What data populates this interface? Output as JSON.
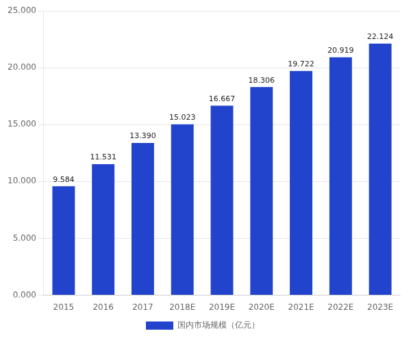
{
  "chart_data": {
    "type": "bar",
    "categories": [
      "2015",
      "2016",
      "2017",
      "2018E",
      "2019E",
      "2020E",
      "2021E",
      "2022E",
      "2023E"
    ],
    "series": [
      {
        "name": "国内市场规模（亿元）",
        "color": "#2244cc",
        "values": [
          9.584,
          11.531,
          13.39,
          15.023,
          16.667,
          18.306,
          19.722,
          20.919,
          22.124
        ],
        "value_labels": [
          "9.584",
          "11.531",
          "13.390",
          "15.023",
          "16.667",
          "18.306",
          "19.722",
          "20.919",
          "22.124"
        ]
      }
    ],
    "ylim": [
      0,
      25
    ],
    "yticks": [
      {
        "value": 0,
        "label": "0.000"
      },
      {
        "value": 5,
        "label": "5.000"
      },
      {
        "value": 10,
        "label": "10.000"
      },
      {
        "value": 15,
        "label": "15.000"
      },
      {
        "value": 20,
        "label": "20.000"
      },
      {
        "value": 25,
        "label": "25.000"
      }
    ],
    "grid": true,
    "legend": "bottom",
    "data_labels": true
  }
}
